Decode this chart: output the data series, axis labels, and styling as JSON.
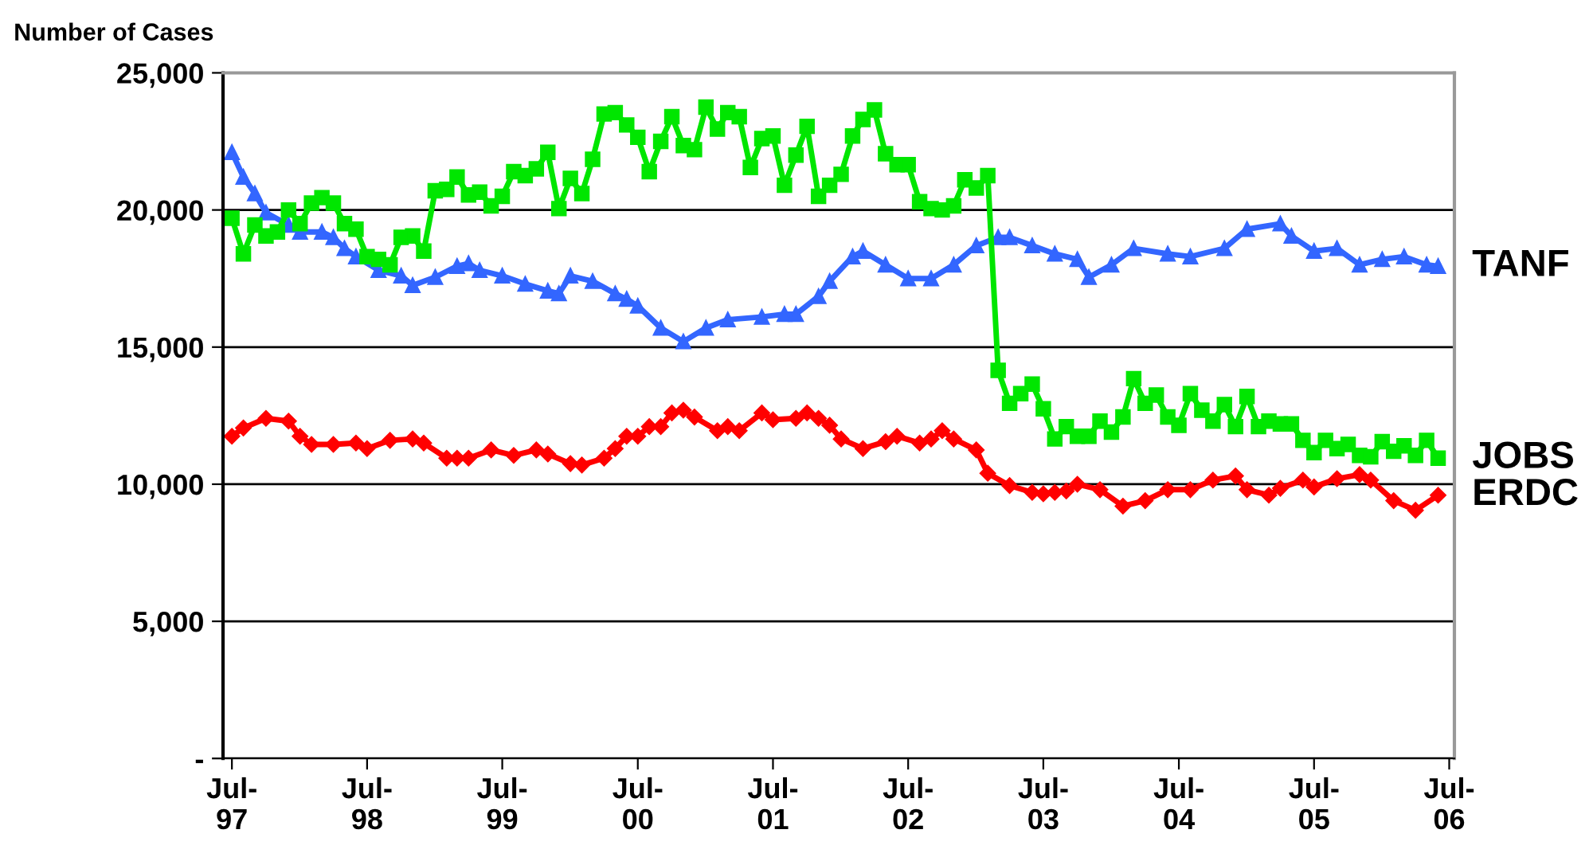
{
  "chart_data": {
    "type": "line",
    "ylabel": "Number of Cases",
    "xlim": [
      "1997-06-07",
      "2006-07-15"
    ],
    "xticks": [
      {
        "value": "1997-07",
        "label": "Jul-\n97"
      },
      {
        "value": "1998-07",
        "label": "Jul-\n98"
      },
      {
        "value": "1999-07",
        "label": "Jul-\n99"
      },
      {
        "value": "2000-07",
        "label": "Jul-\n00"
      },
      {
        "value": "2001-07",
        "label": "Jul-\n01"
      },
      {
        "value": "2002-07",
        "label": "Jul-\n02"
      },
      {
        "value": "2003-07",
        "label": "Jul-\n03"
      },
      {
        "value": "2004-07",
        "label": "Jul-\n04"
      },
      {
        "value": "2005-07",
        "label": "Jul-\n05"
      },
      {
        "value": "2006-07",
        "label": "Jul-\n06"
      }
    ],
    "ylim": [
      0,
      25000
    ],
    "yticks": [
      {
        "value": 0,
        "label": "-"
      },
      {
        "value": 5000,
        "label": "5,000"
      },
      {
        "value": 10000,
        "label": "10,000"
      },
      {
        "value": 15000,
        "label": "15,000"
      },
      {
        "value": 20000,
        "label": "20,000"
      },
      {
        "value": 25000,
        "label": "25,000"
      }
    ],
    "grid": "y",
    "line_style": "solid",
    "legend": "right",
    "series": [
      {
        "name": "TANF",
        "color": "#3366ff",
        "marker": "triangle",
        "x": [
          "1997-07",
          "1997-08",
          "1997-09",
          "1997-10",
          "1997-12",
          "1998-01",
          "1998-03",
          "1998-04",
          "1998-05",
          "1998-06",
          "1998-08",
          "1998-10",
          "1998-11",
          "1999-01",
          "1999-03",
          "1999-04",
          "1999-05",
          "1999-07",
          "1999-09",
          "1999-11",
          "1999-12",
          "2000-01",
          "2000-03",
          "2000-05",
          "2000-06",
          "2000-07",
          "2000-09",
          "2000-11",
          "2001-01",
          "2001-03",
          "2001-06",
          "2001-08",
          "2001-09",
          "2001-11",
          "2001-12",
          "2002-02",
          "2002-03",
          "2002-05",
          "2002-07",
          "2002-09",
          "2002-11",
          "2003-01",
          "2003-03",
          "2003-04",
          "2003-06",
          "2003-08",
          "2003-10",
          "2003-11",
          "2004-01",
          "2004-03",
          "2004-06",
          "2004-08",
          "2004-11",
          "2005-01",
          "2005-04",
          "2005-05",
          "2005-07",
          "2005-09",
          "2005-11",
          "2006-01",
          "2006-03",
          "2006-05",
          "2006-06"
        ],
        "values": [
          22100,
          21200,
          20600,
          19900,
          19450,
          19200,
          19200,
          19000,
          18600,
          18300,
          17800,
          17600,
          17250,
          17550,
          17950,
          18050,
          17800,
          17600,
          17300,
          17050,
          16950,
          17600,
          17400,
          16950,
          16750,
          16500,
          15700,
          15200,
          15700,
          16000,
          16100,
          16200,
          16200,
          16850,
          17400,
          18300,
          18500,
          18000,
          17500,
          17500,
          18000,
          18700,
          19000,
          19000,
          18700,
          18400,
          18200,
          17550,
          18000,
          18600,
          18400,
          18300,
          18600,
          19300,
          19500,
          19050,
          18500,
          18600,
          18000,
          18200,
          18300,
          18000,
          17950
        ]
      },
      {
        "name": "JOBS",
        "color": "#00e600",
        "marker": "square",
        "x": [
          "1997-07",
          "1997-08",
          "1997-09",
          "1997-10",
          "1997-11",
          "1997-12",
          "1998-01",
          "1998-02",
          "1998-03",
          "1998-04",
          "1998-05",
          "1998-06",
          "1998-07",
          "1998-08",
          "1998-09",
          "1998-10",
          "1998-11",
          "1998-12",
          "1999-01",
          "1999-02",
          "1999-03",
          "1999-04",
          "1999-05",
          "1999-06",
          "1999-07",
          "1999-08",
          "1999-09",
          "1999-10",
          "1999-11",
          "1999-12",
          "2000-01",
          "2000-02",
          "2000-03",
          "2000-04",
          "2000-05",
          "2000-06",
          "2000-07",
          "2000-08",
          "2000-09",
          "2000-10",
          "2000-11",
          "2000-12",
          "2001-01",
          "2001-02",
          "2001-03",
          "2001-04",
          "2001-05",
          "2001-06",
          "2001-07",
          "2001-08",
          "2001-09",
          "2001-10",
          "2001-11",
          "2001-12",
          "2002-01",
          "2002-02",
          "2002-03",
          "2002-04",
          "2002-05",
          "2002-06",
          "2002-07",
          "2002-08",
          "2002-09",
          "2002-10",
          "2002-11",
          "2002-12",
          "2003-01",
          "2003-02",
          "2003-03",
          "2003-04",
          "2003-05",
          "2003-06",
          "2003-07",
          "2003-08",
          "2003-09",
          "2003-10",
          "2003-11",
          "2003-12",
          "2004-01",
          "2004-02",
          "2004-03",
          "2004-04",
          "2004-05",
          "2004-06",
          "2004-07",
          "2004-08",
          "2004-09",
          "2004-10",
          "2004-11",
          "2004-12",
          "2005-01",
          "2005-02",
          "2005-03",
          "2005-04",
          "2005-05",
          "2005-06",
          "2005-07",
          "2005-08",
          "2005-09",
          "2005-10",
          "2005-11",
          "2005-12",
          "2006-01",
          "2006-02",
          "2006-03",
          "2006-04",
          "2006-05",
          "2006-06"
        ],
        "values": [
          19700,
          18400,
          19450,
          19050,
          19200,
          20000,
          19500,
          20250,
          20450,
          20250,
          19500,
          19300,
          18300,
          18200,
          18000,
          19000,
          19050,
          18500,
          20700,
          20750,
          21200,
          20550,
          20650,
          20150,
          20500,
          21400,
          21250,
          21500,
          22100,
          20050,
          21150,
          20600,
          21850,
          23500,
          23550,
          23100,
          22650,
          21400,
          22500,
          23400,
          22350,
          22200,
          23750,
          22950,
          23550,
          23400,
          21550,
          22600,
          22700,
          20900,
          22000,
          23050,
          20500,
          20900,
          21300,
          22700,
          23300,
          23650,
          22050,
          21650,
          21650,
          20300,
          20050,
          20000,
          20150,
          21100,
          20800,
          21250,
          14150,
          12950,
          13300,
          13650,
          12750,
          11650,
          12100,
          11750,
          11750,
          12300,
          11900,
          12450,
          13850,
          12950,
          13250,
          12450,
          12150,
          13300,
          12700,
          12300,
          12900,
          12100,
          13200,
          12100,
          12300,
          12200,
          12200,
          11600,
          11150,
          11600,
          11300,
          11450,
          11050,
          11000,
          11550,
          11200,
          11400,
          11050,
          11600,
          10950
        ]
      },
      {
        "name": "ERDC",
        "color": "#ff0000",
        "marker": "diamond",
        "x": [
          "1997-07",
          "1997-08",
          "1997-10",
          "1997-12",
          "1998-01",
          "1998-02",
          "1998-04",
          "1998-06",
          "1998-07",
          "1998-09",
          "1998-11",
          "1998-12",
          "1999-02",
          "1999-03",
          "1999-04",
          "1999-06",
          "1999-08",
          "1999-10",
          "1999-11",
          "2000-01",
          "2000-02",
          "2000-04",
          "2000-05",
          "2000-06",
          "2000-07",
          "2000-08",
          "2000-09",
          "2000-10",
          "2000-11",
          "2000-12",
          "2001-02",
          "2001-03",
          "2001-04",
          "2001-06",
          "2001-07",
          "2001-09",
          "2001-10",
          "2001-11",
          "2001-12",
          "2002-01",
          "2002-03",
          "2002-05",
          "2002-06",
          "2002-08",
          "2002-09",
          "2002-10",
          "2002-11",
          "2003-01",
          "2003-02",
          "2003-04",
          "2003-06",
          "2003-07",
          "2003-08",
          "2003-09",
          "2003-10",
          "2003-12",
          "2004-02",
          "2004-04",
          "2004-06",
          "2004-08",
          "2004-10",
          "2004-12",
          "2005-01",
          "2005-03",
          "2005-04",
          "2005-06",
          "2005-07",
          "2005-09",
          "2005-11",
          "2005-12",
          "2006-02",
          "2006-04",
          "2006-06"
        ],
        "values": [
          11750,
          12050,
          12400,
          12300,
          11750,
          11450,
          11450,
          11500,
          11300,
          11600,
          11650,
          11500,
          10950,
          10950,
          10950,
          11250,
          11050,
          11250,
          11100,
          10750,
          10700,
          10950,
          11300,
          11750,
          11750,
          12100,
          12100,
          12600,
          12700,
          12450,
          11950,
          12100,
          11950,
          12600,
          12350,
          12400,
          12600,
          12400,
          12150,
          11650,
          11300,
          11550,
          11750,
          11500,
          11650,
          11950,
          11650,
          11250,
          10400,
          9950,
          9700,
          9650,
          9700,
          9750,
          10000,
          9800,
          9200,
          9400,
          9800,
          9800,
          10150,
          10300,
          9800,
          9600,
          9850,
          10150,
          9900,
          10200,
          10350,
          10150,
          9400,
          9050,
          9600
        ]
      }
    ]
  }
}
